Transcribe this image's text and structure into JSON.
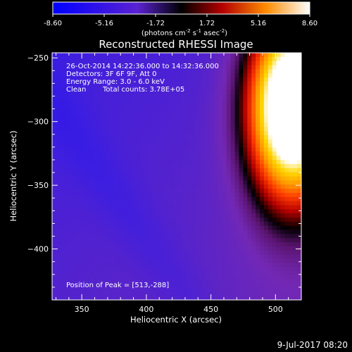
{
  "chart_data": {
    "type": "heatmap",
    "title": "Reconstructed RHESSI Image",
    "xlabel": "Heliocentric X (arcsec)",
    "ylabel": "Heliocentric Y (arcsec)",
    "xlim": [
      327,
      520
    ],
    "ylim": [
      -440,
      -246
    ],
    "xticks": [
      350,
      400,
      450,
      500
    ],
    "yticks": [
      -250,
      -300,
      -350,
      -400
    ],
    "colorbar": {
      "range": [
        -8.6,
        8.6
      ],
      "ticks": [
        "-8.60",
        "-5.16",
        "-1.72",
        "1.72",
        "5.16",
        "8.60"
      ],
      "unit_base": "(photons cm",
      "unit_exp1": "-2",
      "unit_mid": " s",
      "unit_exp2": "-1",
      "unit_end": " asec",
      "unit_exp3": "-2",
      "unit_close": ")"
    },
    "info": {
      "time_range": "26-Oct-2014 14:22:36.000 to 14:32:36.000",
      "detectors": "Detectors: 3F 6F 9F, Att 0",
      "energy": "Energy Range: 3.0 - 6.0 keV",
      "clean": "Clean",
      "counts": "Total counts: 3.78E+05",
      "peak": "Position of Peak = [513,-288]"
    },
    "peak": [
      513,
      -288
    ],
    "date_stamp": "9-Jul-2017 08:20"
  }
}
